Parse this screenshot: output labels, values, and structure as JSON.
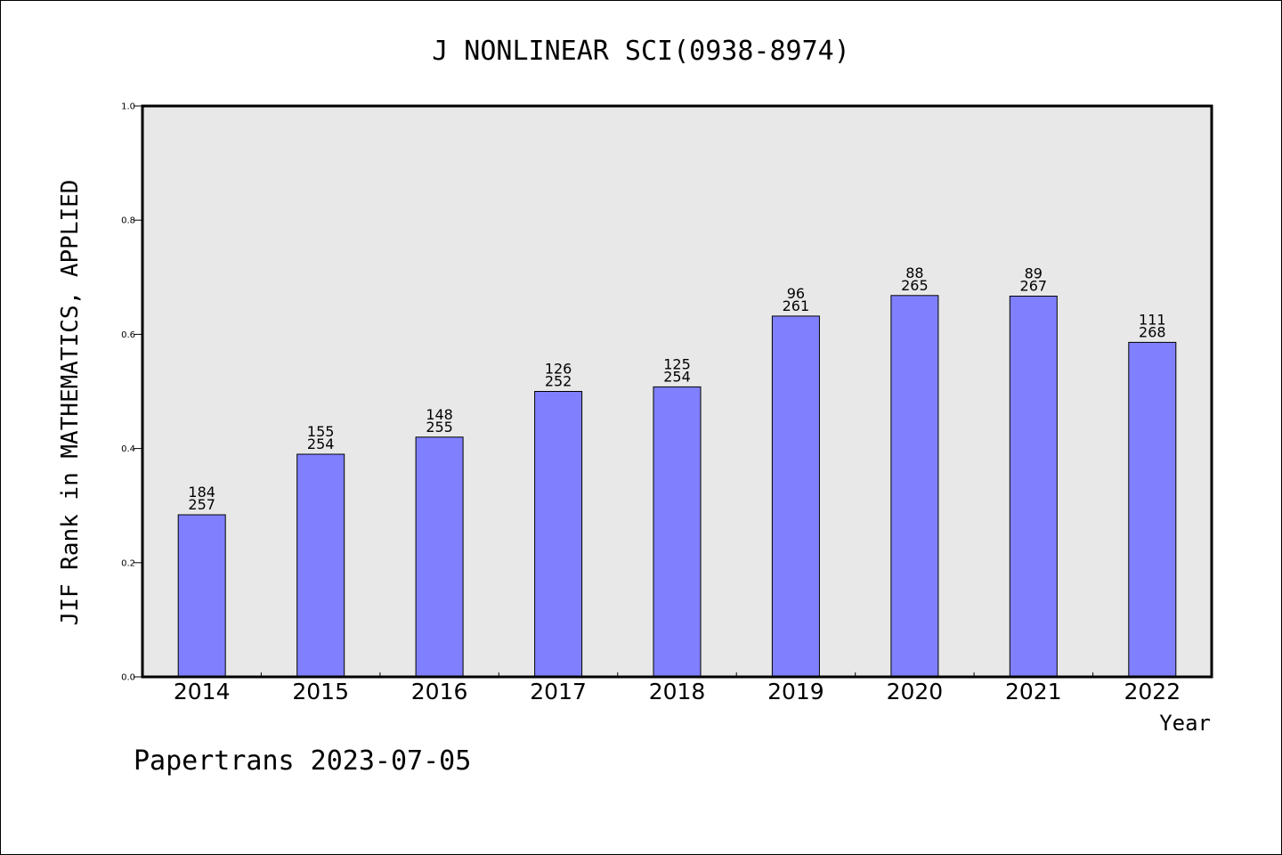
{
  "chart_data": {
    "type": "bar",
    "title": "J NONLINEAR SCI(0938-8974)",
    "xlabel": "Year",
    "ylabel": "JIF Rank in MATHEMATICS, APPLIED",
    "categories": [
      "2014",
      "2015",
      "2016",
      "2017",
      "2018",
      "2019",
      "2020",
      "2021",
      "2022"
    ],
    "values": [
      0.284,
      0.39,
      0.42,
      0.5,
      0.508,
      0.632,
      0.668,
      0.667,
      0.586
    ],
    "bar_labels": [
      [
        "184",
        "257"
      ],
      [
        "155",
        "254"
      ],
      [
        "148",
        "255"
      ],
      [
        "126",
        "252"
      ],
      [
        "125",
        "254"
      ],
      [
        "96",
        "261"
      ],
      [
        "88",
        "265"
      ],
      [
        "89",
        "267"
      ],
      [
        "111",
        "268"
      ]
    ],
    "ylim": [
      0.0,
      1.0
    ],
    "yticks": [
      "0.0",
      "0.2",
      "0.4",
      "0.6",
      "0.8",
      "1.0"
    ],
    "grid": false,
    "colors": {
      "bar": "#8080ff",
      "plot_background": "#e8e8e8",
      "axis": "#000000"
    }
  },
  "footer": {
    "credit": "Papertrans 2023-07-05"
  }
}
